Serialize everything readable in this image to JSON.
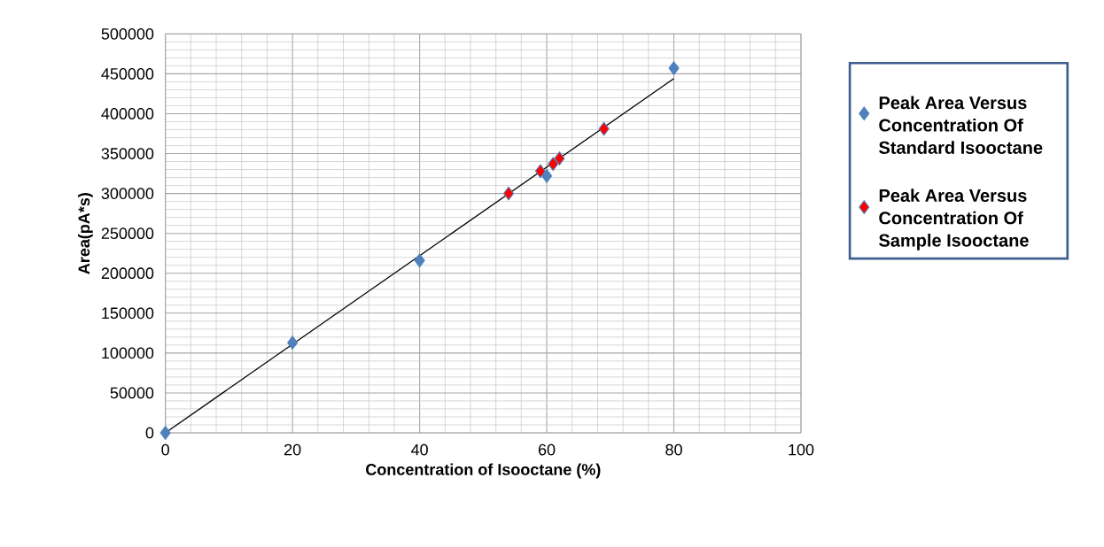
{
  "chart_data": {
    "type": "scatter",
    "xlabel": "Concentration of Isooctane (%)",
    "ylabel": "Area(pA*s)",
    "xlim": [
      0,
      100
    ],
    "xticks": [
      0,
      20,
      40,
      60,
      80,
      100
    ],
    "ylim": [
      0,
      500000
    ],
    "yticks": [
      0,
      50000,
      100000,
      150000,
      200000,
      250000,
      300000,
      350000,
      400000,
      450000,
      500000
    ],
    "grid": true,
    "legend": "right",
    "marker": "diamond",
    "series": [
      {
        "name": "Peak Area Versus Concentration Of Standard Isooctane",
        "color": "#4f81bd",
        "x": [
          0,
          20,
          40,
          60,
          80
        ],
        "values": [
          0,
          113000,
          216000,
          322000,
          457000
        ]
      },
      {
        "name": "Peak Area Versus Concentration Of Sample Isooctane",
        "color": "#ff0000",
        "x": [
          54,
          59,
          61,
          62,
          69
        ],
        "values": [
          300000,
          328000,
          337000,
          344000,
          381000
        ]
      },
      {
        "type": "line",
        "marker": "none",
        "color": "#000000",
        "x": [
          0,
          80
        ],
        "values": [
          0,
          444000
        ]
      }
    ]
  }
}
